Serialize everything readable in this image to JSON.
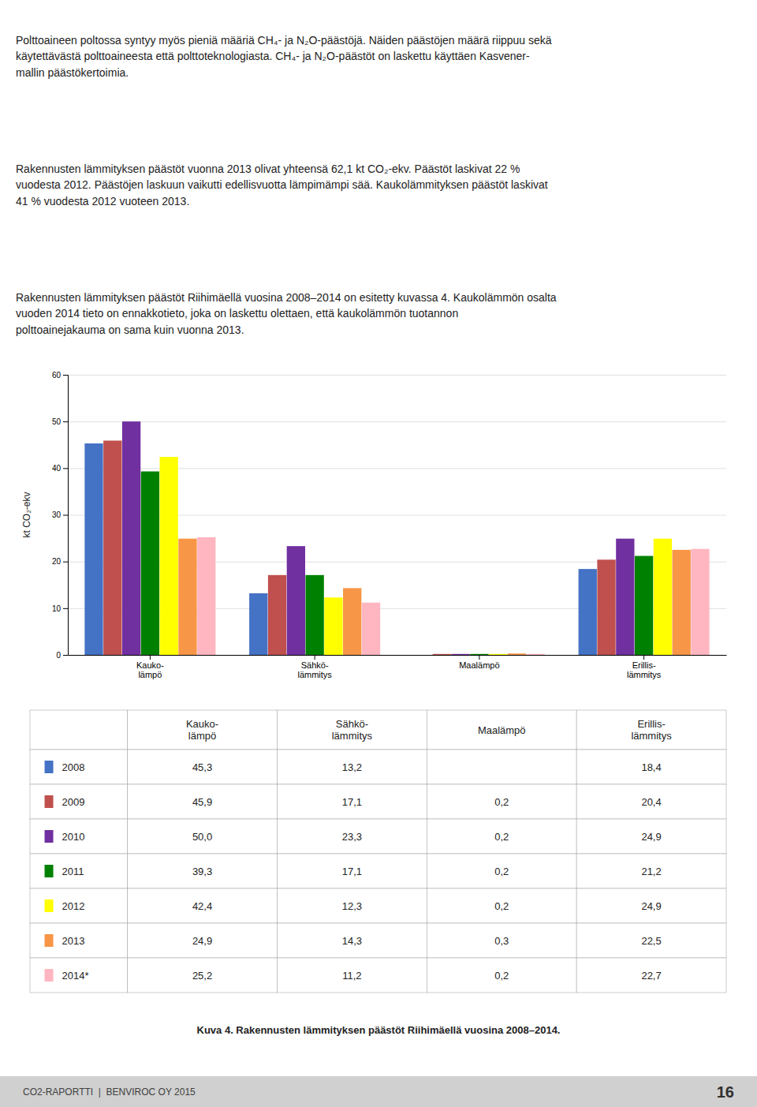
{
  "paragraphs": [
    "Polttoaineen poltossa syntyy myös pieniä määriä CH₄- ja N₂O-päästöjä. Näiden päästöjen määrä riippuu sekä\nkäytettävästä polttoaineesta että polttoteknologiasta. CH₄- ja N₂O-päästöt on laskettu käyttäen Kasvener-\nmallin päästökertoimia.",
    "Rakennusten lämmityksen päästöt vuonna 2013 olivat yhteensä 62,1 kt CO₂-ekv. Päästöt laskivat 22 %\nvuodesta 2012. Päästöjen laskuun vaikutti edellisvuotta lämpimämpi sää. Kaukolämmityksen päästöt laskivat\n41 % vuodesta 2012 vuoteen 2013.",
    "Rakennusten lämmityksen päästöt Riihimäellä vuosina 2008–2014 on esitetty kuvassa 4. Kaukolämmön osalta\nvuoden 2014 tieto on ennakkotieto, joka on laskettu olettaen, että kaukolämmön tuotannon\npolttoainejakauma on sama kuin vuonna 2013."
  ],
  "chart_data": {
    "type": "bar",
    "categories": [
      "Kauko-\nlämpö",
      "Sähkö-\nlämmitys",
      "Maalämpö",
      "Erillis-\nlämmitys"
    ],
    "series": [
      {
        "name": "2008",
        "color": "#4472C4",
        "values": [
          45.3,
          13.2,
          0.0,
          18.4
        ]
      },
      {
        "name": "2009",
        "color": "#C0504D",
        "values": [
          45.9,
          17.1,
          0.2,
          20.4
        ]
      },
      {
        "name": "2010",
        "color": "#7030A0",
        "values": [
          50.0,
          23.3,
          0.2,
          24.9
        ]
      },
      {
        "name": "2011",
        "color": "#008000",
        "values": [
          39.3,
          17.1,
          0.2,
          21.2
        ]
      },
      {
        "name": "2012",
        "color": "#FFFF00",
        "values": [
          42.4,
          12.3,
          0.2,
          24.9
        ]
      },
      {
        "name": "2013",
        "color": "#F79646",
        "values": [
          24.9,
          14.3,
          0.3,
          22.5
        ]
      },
      {
        "name": "2014*",
        "color": "#FFB6C1",
        "values": [
          25.2,
          11.2,
          0.2,
          22.7
        ]
      }
    ],
    "ylim": [
      0,
      60
    ],
    "yticks": [
      0,
      10,
      20,
      30,
      40,
      50,
      60
    ],
    "ylabel": "kt CO₂-ekv",
    "grid": true
  },
  "table": {
    "columns": [
      null,
      "Kauko-\nlämpö",
      "Sähkö-\nlämmitys",
      "Maalämpö",
      "Erillis-\nlämmitys"
    ],
    "rows": [
      [
        "45,3",
        "13,2",
        null,
        "18,4"
      ],
      [
        "45,9",
        "17,1",
        "0,2",
        "20,4"
      ],
      [
        "50,0",
        "23,3",
        "0,2",
        "24,9"
      ],
      [
        "39,3",
        "17,1",
        "0,2",
        "21,2"
      ],
      [
        "42,4",
        "12,3",
        "0,2",
        "24,9"
      ],
      [
        "24,9",
        "14,3",
        "0,3",
        "22,5"
      ],
      [
        "25,2",
        "11,2",
        "0,2",
        "22,7"
      ]
    ]
  },
  "caption": "Kuva 4. Rakennusten lämmityksen päästöt Riihimäellä vuosina 2008–2014.",
  "footer_left": "CO2-RAPORTTI  |  BENVIROC OY 2015",
  "footer_right": "16"
}
